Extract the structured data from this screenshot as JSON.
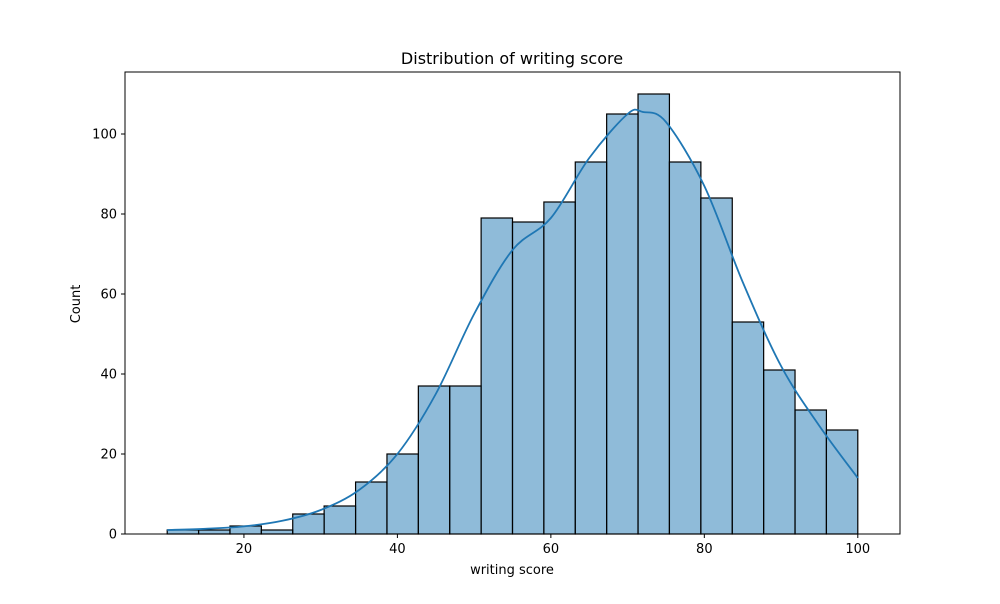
{
  "chart_data": {
    "type": "bar",
    "subtype": "histogram",
    "title": "Distribution of writing score",
    "xlabel": "writing score",
    "ylabel": "Count",
    "xlim": [
      4.5,
      105.5
    ],
    "ylim": [
      0,
      115.5
    ],
    "x_ticks": [
      20,
      40,
      60,
      80,
      100
    ],
    "y_ticks": [
      0,
      20,
      40,
      60,
      80,
      100
    ],
    "grid": false,
    "legend": "none",
    "bin_start": 10,
    "bin_end": 100,
    "bins": [
      {
        "x0": 10.0,
        "x1": 14.09,
        "count": 1
      },
      {
        "x0": 14.09,
        "x1": 18.18,
        "count": 1
      },
      {
        "x0": 18.18,
        "x1": 22.27,
        "count": 2
      },
      {
        "x0": 22.27,
        "x1": 26.36,
        "count": 1
      },
      {
        "x0": 26.36,
        "x1": 30.45,
        "count": 5
      },
      {
        "x0": 30.45,
        "x1": 34.55,
        "count": 7
      },
      {
        "x0": 34.55,
        "x1": 38.64,
        "count": 13
      },
      {
        "x0": 38.64,
        "x1": 42.73,
        "count": 20
      },
      {
        "x0": 42.73,
        "x1": 46.82,
        "count": 37
      },
      {
        "x0": 46.82,
        "x1": 50.91,
        "count": 37
      },
      {
        "x0": 50.91,
        "x1": 55.0,
        "count": 79
      },
      {
        "x0": 55.0,
        "x1": 59.09,
        "count": 78
      },
      {
        "x0": 59.09,
        "x1": 63.18,
        "count": 83
      },
      {
        "x0": 63.18,
        "x1": 67.27,
        "count": 93
      },
      {
        "x0": 67.27,
        "x1": 71.36,
        "count": 105
      },
      {
        "x0": 71.36,
        "x1": 75.45,
        "count": 110
      },
      {
        "x0": 75.45,
        "x1": 79.55,
        "count": 93
      },
      {
        "x0": 79.55,
        "x1": 83.64,
        "count": 84
      },
      {
        "x0": 83.64,
        "x1": 87.73,
        "count": 53
      },
      {
        "x0": 87.73,
        "x1": 91.82,
        "count": 41
      },
      {
        "x0": 91.82,
        "x1": 95.91,
        "count": 31
      },
      {
        "x0": 95.91,
        "x1": 100.0,
        "count": 26
      }
    ],
    "kde": {
      "x": [
        10,
        15,
        20,
        25,
        30,
        35,
        40,
        45,
        50,
        55,
        60,
        65,
        70,
        72,
        75,
        80,
        85,
        90,
        95,
        100
      ],
      "y": [
        1,
        1.3,
        1.9,
        3.3,
        6,
        11,
        20,
        35,
        55,
        71,
        79,
        94,
        105,
        105.5,
        103,
        87,
        63,
        42,
        27,
        14
      ]
    },
    "colors": {
      "bar_fill": "#1f77b4",
      "bar_fill_opacity": 0.5,
      "bar_edge": "#000000",
      "kde_line": "#1f77b4",
      "axes": "#000000"
    }
  }
}
